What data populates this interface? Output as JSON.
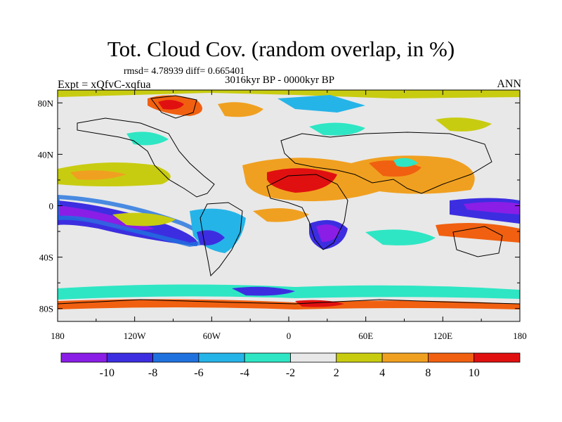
{
  "title": "Tot. Cloud Cov. (random overlap, in %)",
  "stats": "rmsd= 4.78939 diff= 0.665401",
  "period": "3016kyr BP - 0000kyr BP",
  "experiment": "Expt = xQfvC-xqfua",
  "season": "ANN",
  "map_data": {
    "type": "filled-contour-map",
    "projection": "equirectangular",
    "lon_range": [
      -180,
      180
    ],
    "lat_range": [
      -90,
      90
    ],
    "lon_ticks": [
      "180",
      "120W",
      "60W",
      "0",
      "60E",
      "120E",
      "180"
    ],
    "lat_ticks": [
      "80N",
      "40N",
      "0",
      "40S",
      "80S"
    ],
    "colorbar": {
      "labels": [
        "-10",
        "-8",
        "-6",
        "-4",
        "-2",
        "2",
        "4",
        "8",
        "10"
      ],
      "colors": [
        "#8a1ee6",
        "#3c2ee0",
        "#1f72de",
        "#25b4e8",
        "#2ee6c4",
        "#e8e8e8",
        "#c8cc10",
        "#f0a020",
        "#f06010",
        "#e01010"
      ]
    }
  }
}
